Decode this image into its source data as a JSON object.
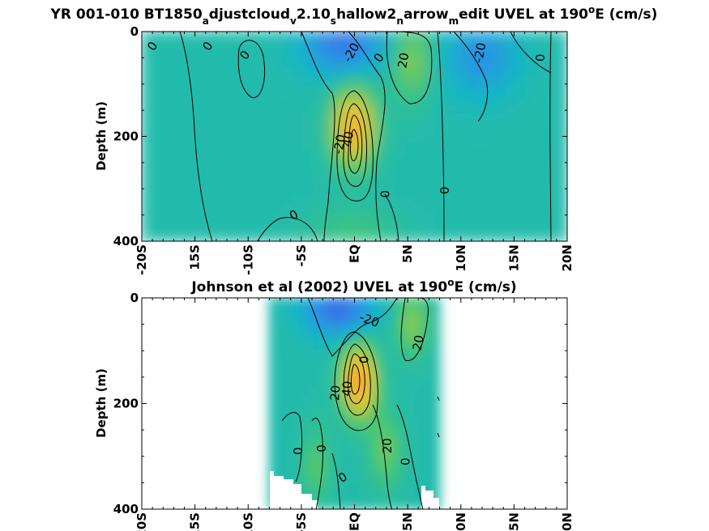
{
  "chart_data": [
    {
      "type": "heatmap",
      "title_parts": [
        {
          "text": "YR 001-010 BT1850",
          "shift": "base"
        },
        {
          "text": "a",
          "shift": "sub"
        },
        {
          "text": "djustcloud",
          "shift": "base"
        },
        {
          "text": "v",
          "shift": "sub"
        },
        {
          "text": "2.10",
          "shift": "base"
        },
        {
          "text": "s",
          "shift": "sub"
        },
        {
          "text": "hallow2",
          "shift": "base"
        },
        {
          "text": "n",
          "shift": "sub"
        },
        {
          "text": "arrow",
          "shift": "base"
        },
        {
          "text": "m",
          "shift": "sub"
        },
        {
          "text": "edit UVEL at 190",
          "shift": "base"
        },
        {
          "text": "o",
          "shift": "super"
        },
        {
          "text": "E (cm/s)",
          "shift": "base"
        }
      ],
      "ylabel": "Depth (m)",
      "xlim": [
        -20,
        20
      ],
      "ylim": [
        0,
        400
      ],
      "y_reversed": true,
      "x_ticks": [
        {
          "value": -20,
          "label": "-20S"
        },
        {
          "value": -15,
          "label": "15S"
        },
        {
          "value": -10,
          "label": "-10S"
        },
        {
          "value": -5,
          "label": "-5S"
        },
        {
          "value": 0,
          "label": "EQ"
        },
        {
          "value": 5,
          "label": "5N"
        },
        {
          "value": 10,
          "label": "10N"
        },
        {
          "value": 15,
          "label": "15N"
        },
        {
          "value": 20,
          "label": "20N"
        }
      ],
      "y_ticks": [
        {
          "value": 0,
          "label": "0"
        },
        {
          "value": 200,
          "label": "200"
        },
        {
          "value": 400,
          "label": "400"
        }
      ],
      "data_extent_lat": [
        -20,
        20
      ],
      "colormap": [
        "#3b5fe0",
        "#2e8fe8",
        "#14b5c8",
        "#3cc480",
        "#a7ce3c",
        "#f3c23a",
        "#f2a22b"
      ],
      "color_range": [
        -40,
        60
      ],
      "velocity_features": [
        {
          "lat": 0,
          "depth": 185,
          "lat_halfwidth": 1.9,
          "depth_halfwidth": 70,
          "peak": 55
        },
        {
          "lat": 5.5,
          "depth": 60,
          "lat_halfwidth": 1.8,
          "depth_halfwidth": 70,
          "peak": 22
        },
        {
          "lat": -1,
          "depth": 25,
          "lat_halfwidth": 3.5,
          "depth_halfwidth": 55,
          "peak": -32
        },
        {
          "lat": 12,
          "depth": 50,
          "lat_halfwidth": 3.2,
          "depth_halfwidth": 70,
          "peak": -22
        },
        {
          "lat": 0,
          "depth": 380,
          "lat_halfwidth": 4,
          "depth_halfwidth": 40,
          "peak": 10
        }
      ],
      "contour_labels": [
        {
          "text": "0",
          "lat": -19.0,
          "depth": 28,
          "angle": -55
        },
        {
          "text": "0",
          "lat": -13.8,
          "depth": 28,
          "angle": -55
        },
        {
          "text": "0",
          "lat": -10.3,
          "depth": 45,
          "angle": -55
        },
        {
          "text": "-20",
          "lat": -0.3,
          "depth": 40,
          "angle": -60
        },
        {
          "text": "0",
          "lat": 2.3,
          "depth": 50,
          "angle": -55
        },
        {
          "text": "20",
          "lat": 4.6,
          "depth": 55,
          "angle": -80
        },
        {
          "text": "-20",
          "lat": 11.8,
          "depth": 40,
          "angle": -80
        },
        {
          "text": "0",
          "lat": 17.5,
          "depth": 50,
          "angle": -90
        },
        {
          "text": "-20",
          "lat": -1.4,
          "depth": 215,
          "angle": -80
        },
        {
          "text": "40",
          "lat": -0.6,
          "depth": 205,
          "angle": -80
        },
        {
          "text": "0",
          "lat": 2.9,
          "depth": 310,
          "angle": -90
        },
        {
          "text": "0",
          "lat": 8.5,
          "depth": 303,
          "angle": -90
        },
        {
          "text": "0",
          "lat": -5.7,
          "depth": 350,
          "angle": -30
        }
      ]
    },
    {
      "type": "heatmap",
      "title_parts": [
        {
          "text": "Johnson et al (2002) UVEL at 190",
          "shift": "base"
        },
        {
          "text": "o",
          "shift": "super"
        },
        {
          "text": "E (cm/s)",
          "shift": "base"
        }
      ],
      "ylabel": "Depth (m)",
      "xlim": [
        -20,
        20
      ],
      "ylim": [
        0,
        400
      ],
      "y_reversed": true,
      "x_ticks": [
        {
          "value": -20,
          "label": "-20S"
        },
        {
          "value": -15,
          "label": "15S"
        },
        {
          "value": -10,
          "label": "-10S"
        },
        {
          "value": -5,
          "label": "-5S"
        },
        {
          "value": 0,
          "label": "EQ"
        },
        {
          "value": 5,
          "label": "5N"
        },
        {
          "value": 10,
          "label": "10N"
        },
        {
          "value": 15,
          "label": "15N"
        },
        {
          "value": 20,
          "label": "20N"
        }
      ],
      "y_ticks": [
        {
          "value": 0,
          "label": "0"
        },
        {
          "value": 200,
          "label": "200"
        },
        {
          "value": 400,
          "label": "400"
        }
      ],
      "data_extent_lat": [
        -8,
        8
      ],
      "data_max_depth": 400,
      "colormap": [
        "#3b5fe0",
        "#2e8fe8",
        "#14b5c8",
        "#3cc480",
        "#a7ce3c",
        "#f3c23a",
        "#f2a22b"
      ],
      "color_range": [
        -40,
        60
      ],
      "velocity_features": [
        {
          "lat": 0.5,
          "depth": 160,
          "lat_halfwidth": 1.6,
          "depth_halfwidth": 65,
          "peak": 60
        },
        {
          "lat": 5.5,
          "depth": 50,
          "lat_halfwidth": 1.5,
          "depth_halfwidth": 60,
          "peak": 22
        },
        {
          "lat": -1.5,
          "depth": 25,
          "lat_halfwidth": 3,
          "depth_halfwidth": 45,
          "peak": -35
        },
        {
          "lat": -3.5,
          "depth": 320,
          "lat_halfwidth": 1.3,
          "depth_halfwidth": 70,
          "peak": 15
        },
        {
          "lat": 3,
          "depth": 290,
          "lat_halfwidth": 1.5,
          "depth_halfwidth": 70,
          "peak": 18
        }
      ],
      "contour_labels": [
        {
          "text": "-20",
          "lat": 1.4,
          "depth": 42,
          "angle": 20
        },
        {
          "text": "20",
          "lat": 6.0,
          "depth": 85,
          "angle": -80
        },
        {
          "text": "20",
          "lat": -1.8,
          "depth": 180,
          "angle": -85
        },
        {
          "text": "40",
          "lat": -0.7,
          "depth": 172,
          "angle": -85
        },
        {
          "text": "0",
          "lat": 0.9,
          "depth": 117,
          "angle": -90
        },
        {
          "text": "0",
          "lat": -5.3,
          "depth": 290,
          "angle": -90
        },
        {
          "text": "0",
          "lat": -3.1,
          "depth": 285,
          "angle": -90
        },
        {
          "text": "20",
          "lat": 3.1,
          "depth": 280,
          "angle": -90
        },
        {
          "text": "0",
          "lat": 4.8,
          "depth": 310,
          "angle": -90
        },
        {
          "text": "0",
          "lat": -1.1,
          "depth": 340,
          "angle": -30
        }
      ]
    }
  ]
}
